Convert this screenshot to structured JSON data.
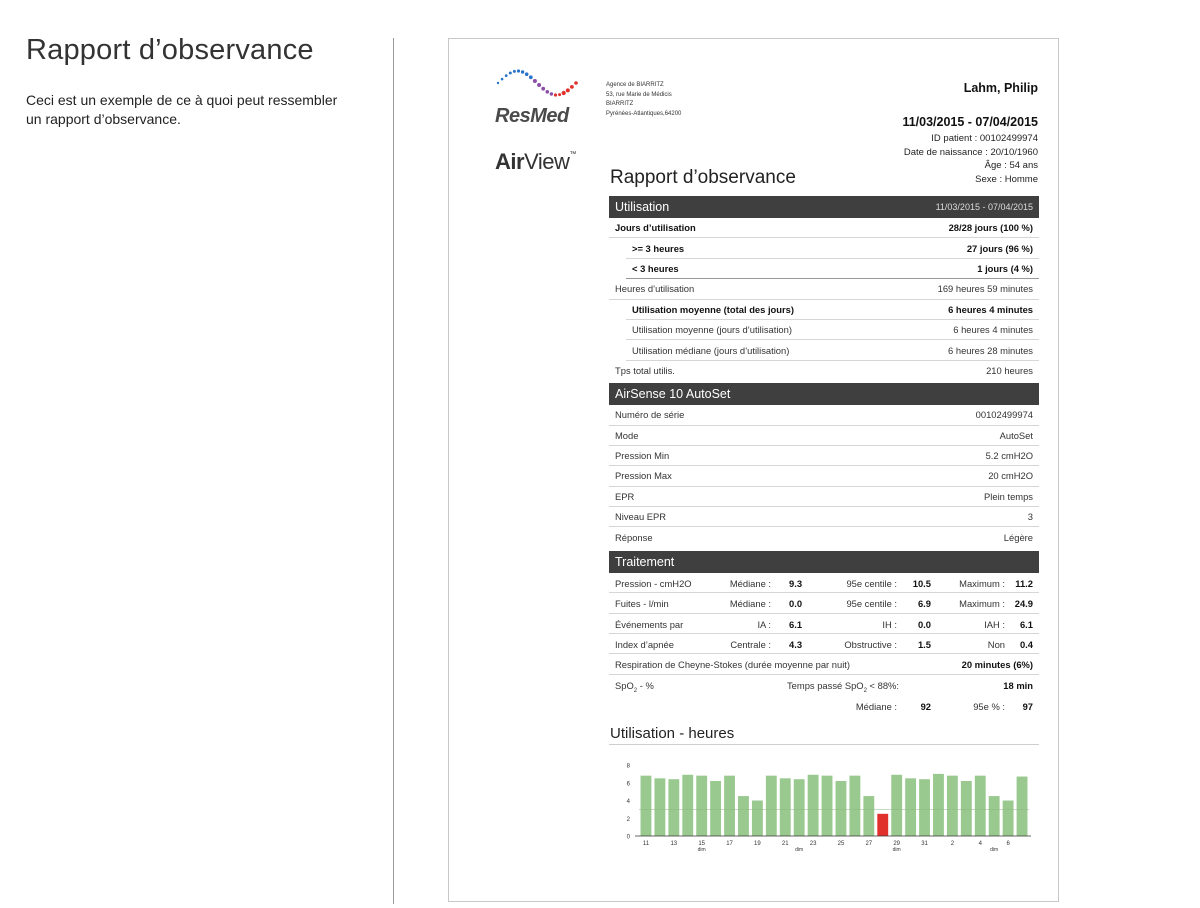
{
  "page": {
    "title": "Rapport d’observance",
    "description": "Ceci est un exemple de ce à quoi peut ressembler un rapport d’observance."
  },
  "report": {
    "brand": "ResMed",
    "product_prefix": "Air",
    "product_suffix": "View",
    "product_tm": "™",
    "agency": [
      "Agence de BIARRITZ",
      "53, rue Marie de Médicis",
      "BIARRITZ",
      "Pyrénées-Atlantiques,64200"
    ],
    "patient_name": "Lahm, Philip",
    "period": "11/03/2015 - 07/04/2015",
    "patient_info": [
      "ID patient : 00102499974",
      "Date de naissance : 20/10/1960",
      "Âge : 54 ans",
      "Sexe : Homme"
    ],
    "title": "Rapport d’observance",
    "usage": {
      "header": "Utilisation",
      "header_period": "11/03/2015 - 07/04/2015",
      "rows": [
        {
          "label": "Jours d’utilisation",
          "value": "28/28 jours (100 %)"
        },
        {
          "label": ">= 3 heures",
          "value": "27 jours (96 %)"
        },
        {
          "label": "< 3 heures",
          "value": "1 jours (4 %)"
        },
        {
          "label": "Heures d’utilisation",
          "value": "169 heures 59 minutes"
        },
        {
          "label": "Utilisation moyenne (total des jours)",
          "value": "6 heures 4 minutes"
        },
        {
          "label": "Utilisation moyenne (jours d’utilisation)",
          "value": "6 heures 4 minutes"
        },
        {
          "label": "Utilisation médiane (jours d’utilisation)",
          "value": "6 heures 28 minutes"
        },
        {
          "label": "Tps total utilis.",
          "value": "210 heures"
        }
      ]
    },
    "device": {
      "header": "AirSense 10 AutoSet",
      "rows": [
        {
          "label": "Numéro de série",
          "value": "00102499974"
        },
        {
          "label": "Mode",
          "value": "AutoSet"
        },
        {
          "label": "Pression Min",
          "value": "5.2 cmH2O"
        },
        {
          "label": "Pression Max",
          "value": "20 cmH2O"
        },
        {
          "label": "EPR",
          "value": "Plein temps"
        },
        {
          "label": "Niveau EPR",
          "value": "3"
        },
        {
          "label": "Réponse",
          "value": "Légère"
        }
      ]
    },
    "treatment": {
      "header": "Traitement",
      "rows": [
        {
          "label": "Pression - cmH2O",
          "k1": "Médiane :",
          "v1": "9.3",
          "k2": "95e centile :",
          "v2": "10.5",
          "k3": "Maximum :",
          "v3": "11.2"
        },
        {
          "label": "Fuites - l/min",
          "k1": "Médiane :",
          "v1": "0.0",
          "k2": "95e centile :",
          "v2": "6.9",
          "k3": "Maximum :",
          "v3": "24.9"
        },
        {
          "label": "Événements par",
          "k1": "IA :",
          "v1": "6.1",
          "k2": "IH :",
          "v2": "0.0",
          "k3": "IAH :",
          "v3": "6.1"
        },
        {
          "label": "Index d’apnée",
          "k1": "Centrale :",
          "v1": "4.3",
          "k2": "Obstructive :",
          "v2": "1.5",
          "k3": "Non",
          "v3": "0.4"
        }
      ],
      "cheyne_label": "Respiration de Cheyne-Stokes (durée moyenne par nuit)",
      "cheyne_value": "20 minutes (6%)",
      "spo2_label_a": "SpO",
      "spo2_label_sub": "2",
      "spo2_label_b": " - %",
      "spo2_time_a": "Temps passé SpO",
      "spo2_time_sub": "2",
      "spo2_time_b": " < 88%:",
      "spo2_time_value": "18 min",
      "spo2_median_key": "Médiane :",
      "spo2_median_value": "92",
      "spo2_p95_key": "95e % :",
      "spo2_p95_value": "97"
    }
  },
  "chart_data": {
    "type": "bar",
    "title": "Utilisation - heures",
    "ylim": [
      0,
      8
    ],
    "yticks": [
      "0",
      "2",
      "4",
      "6",
      "8"
    ],
    "categories": [
      "11",
      "12",
      "13",
      "14",
      "15",
      "16",
      "17",
      "18",
      "19",
      "20",
      "21",
      "22",
      "23",
      "24",
      "25",
      "26",
      "27",
      "28",
      "29",
      "30",
      "31",
      "1",
      "2",
      "3",
      "4",
      "5",
      "6",
      "7"
    ],
    "tick_labels": [
      {
        "label": "11",
        "index": 0
      },
      {
        "label": "13",
        "index": 2
      },
      {
        "label": "15",
        "index": 4
      },
      {
        "label": "17",
        "index": 6
      },
      {
        "label": "19",
        "index": 8
      },
      {
        "label": "21",
        "index": 10
      },
      {
        "label": "23",
        "index": 12
      },
      {
        "label": "25",
        "index": 14
      },
      {
        "label": "27",
        "index": 16
      },
      {
        "label": "29",
        "index": 18
      },
      {
        "label": "31",
        "index": 20
      },
      {
        "label": "2",
        "index": 22
      },
      {
        "label": "4",
        "index": 24
      },
      {
        "label": "6",
        "index": 26
      }
    ],
    "sunday_labels": [
      {
        "label": "dim",
        "index": 4
      },
      {
        "label": "dim",
        "index": 11
      },
      {
        "label": "dim",
        "index": 18
      },
      {
        "label": "dim",
        "index": 25
      }
    ],
    "values": [
      6.8,
      6.5,
      6.4,
      6.9,
      6.8,
      6.2,
      6.8,
      4.5,
      4.0,
      6.8,
      6.5,
      6.4,
      6.9,
      6.8,
      6.2,
      6.8,
      4.5,
      2.5,
      6.9,
      6.5,
      6.4,
      7.0,
      6.8,
      6.2,
      6.8,
      4.5,
      4.0,
      6.7
    ],
    "colors": {
      "normal": "#9ac98f",
      "low": "#e0312c"
    },
    "threshold": 3
  }
}
